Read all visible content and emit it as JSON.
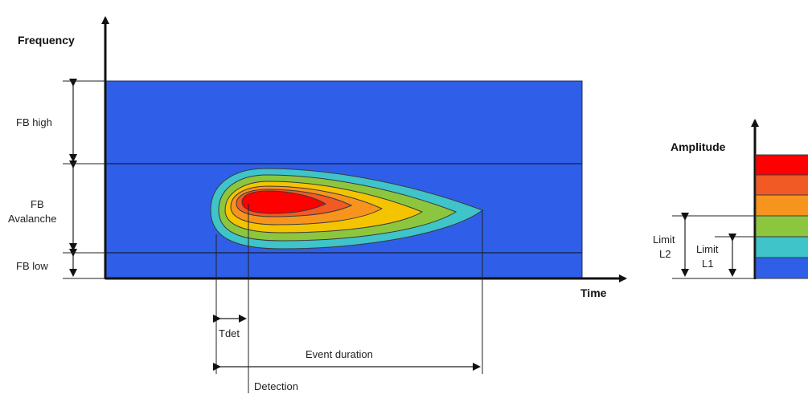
{
  "axes": {
    "frequency": "Frequency",
    "time": "Time",
    "amplitude": "Amplitude"
  },
  "bands": {
    "high": "FB high",
    "avalanche_line1": "FB",
    "avalanche_line2": "Avalanche",
    "low": "FB low"
  },
  "annotations": {
    "tdet": "Tdet",
    "event_duration": "Event duration",
    "detection": "Detection"
  },
  "limits": {
    "l2_line1": "Limit",
    "l2_line2": "L2",
    "l1_line1": "Limit",
    "l1_line2": "L1"
  },
  "colors": {
    "background_blue": "#2f5fe8",
    "level_cyan": "#3ec4c9",
    "level_green": "#8cc63f",
    "level_yellow": "#f5c400",
    "level_orange": "#f7941d",
    "level_orange_red": "#f15a24",
    "level_red": "#ff0000"
  }
}
